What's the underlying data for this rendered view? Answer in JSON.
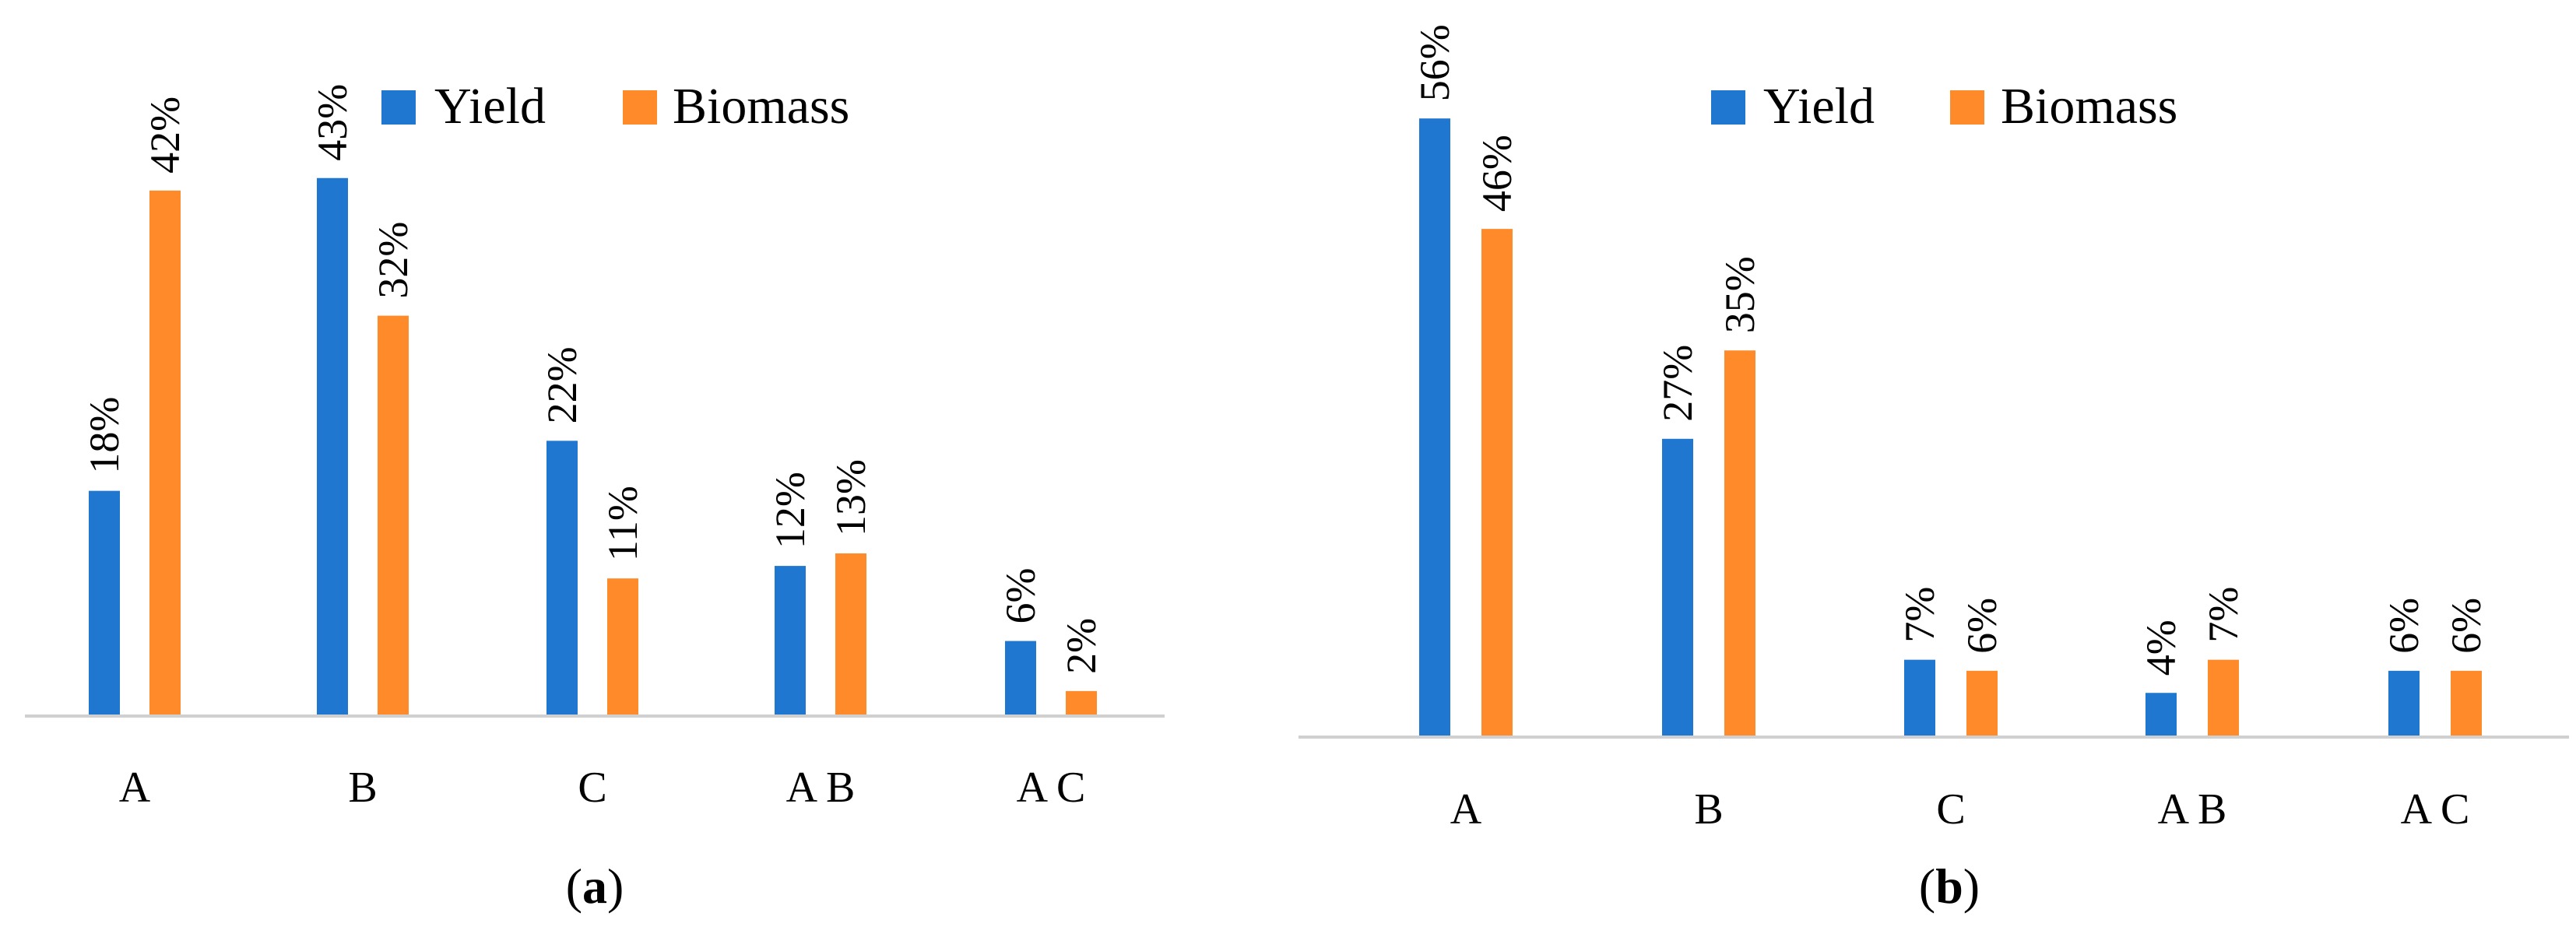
{
  "colors": {
    "yield": "#1f77d0",
    "biomass": "#ff8a2a",
    "axis": "#d0d0d0"
  },
  "chart_data": [
    {
      "type": "bar",
      "panel": "(a)",
      "caption": {
        "open": "(",
        "letter": "a",
        "close": ")"
      },
      "categories": [
        "A",
        "B",
        "C",
        "A B",
        "A C"
      ],
      "series": [
        {
          "name": "Yield",
          "values": [
            18,
            43,
            22,
            12,
            6
          ],
          "labels": [
            "18%",
            "43%",
            "22%",
            "12%",
            "6%"
          ]
        },
        {
          "name": "Biomass",
          "values": [
            42,
            32,
            11,
            13,
            2
          ],
          "labels": [
            "42%",
            "32%",
            "11%",
            "13%",
            "2%"
          ]
        }
      ],
      "ylim": [
        0,
        53
      ],
      "legend": "top",
      "grid": false
    },
    {
      "type": "bar",
      "panel": "(b)",
      "caption": {
        "open": "(",
        "letter": "b",
        "close": ")"
      },
      "categories": [
        "A",
        "B",
        "C",
        "A B",
        "A C"
      ],
      "series": [
        {
          "name": "Yield",
          "values": [
            56,
            27,
            7,
            4,
            6
          ],
          "labels": [
            "56%",
            "27%",
            "7%",
            "4%",
            "6%"
          ]
        },
        {
          "name": "Biomass",
          "values": [
            46,
            35,
            6,
            7,
            6
          ],
          "labels": [
            "46%",
            "35%",
            "6%",
            "7%",
            "6%"
          ]
        }
      ],
      "ylim": [
        0,
        57
      ],
      "legend": "top",
      "grid": false
    }
  ]
}
